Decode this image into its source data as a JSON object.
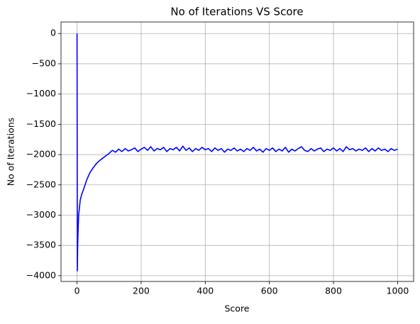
{
  "chart_data": {
    "type": "line",
    "title": "No of Iterations VS Score",
    "x_label": "Score",
    "y_label": "No of Iterations",
    "color": "#0000ff",
    "grid": true,
    "xlim": [
      -50,
      1050
    ],
    "xticks": [
      0,
      200,
      400,
      600,
      800,
      1000
    ],
    "ylim": [
      -4095,
      190
    ],
    "yticks": [
      0,
      {
        "value": -500,
        "label": "−500"
      },
      {
        "value": -1000,
        "label": "−1000"
      },
      {
        "value": -1500,
        "label": "−1500"
      },
      {
        "value": -2000,
        "label": "−2000"
      },
      {
        "value": -2500,
        "label": "−2500"
      },
      {
        "value": -3000,
        "label": "−3000"
      },
      {
        "value": -3500,
        "label": "−3500"
      },
      {
        "value": -4000,
        "label": "−4000"
      }
    ],
    "x": [
      0,
      1,
      2,
      3,
      5,
      7,
      10,
      15,
      20,
      25,
      30,
      40,
      50,
      60,
      70,
      80,
      90,
      100,
      110,
      120,
      130,
      140,
      150,
      160,
      170,
      180,
      190,
      200,
      210,
      220,
      230,
      240,
      250,
      260,
      270,
      280,
      290,
      300,
      310,
      320,
      330,
      340,
      350,
      360,
      370,
      380,
      390,
      400,
      410,
      420,
      430,
      440,
      450,
      460,
      470,
      480,
      490,
      500,
      510,
      520,
      530,
      540,
      550,
      560,
      570,
      580,
      590,
      600,
      610,
      620,
      630,
      640,
      650,
      660,
      670,
      680,
      690,
      700,
      710,
      720,
      730,
      740,
      750,
      760,
      770,
      780,
      790,
      800,
      810,
      820,
      830,
      840,
      850,
      860,
      870,
      880,
      890,
      900,
      910,
      920,
      930,
      940,
      950,
      960,
      970,
      980,
      990,
      1000
    ],
    "values": [
      0,
      -3920,
      -3500,
      -3300,
      -3000,
      -2900,
      -2750,
      -2650,
      -2580,
      -2500,
      -2420,
      -2300,
      -2220,
      -2150,
      -2100,
      -2060,
      -2020,
      -1980,
      -1930,
      -1960,
      -1910,
      -1950,
      -1900,
      -1940,
      -1920,
      -1890,
      -1950,
      -1910,
      -1880,
      -1930,
      -1870,
      -1940,
      -1900,
      -1920,
      -1880,
      -1950,
      -1900,
      -1920,
      -1880,
      -1940,
      -1860,
      -1930,
      -1890,
      -1950,
      -1900,
      -1930,
      -1880,
      -1920,
      -1900,
      -1950,
      -1890,
      -1930,
      -1900,
      -1960,
      -1910,
      -1930,
      -1890,
      -1940,
      -1910,
      -1950,
      -1900,
      -1930,
      -1880,
      -1940,
      -1910,
      -1960,
      -1900,
      -1930,
      -1890,
      -1950,
      -1910,
      -1940,
      -1880,
      -1960,
      -1910,
      -1940,
      -1900,
      -1870,
      -1930,
      -1950,
      -1900,
      -1940,
      -1910,
      -1890,
      -1950,
      -1910,
      -1930,
      -1890,
      -1940,
      -1900,
      -1950,
      -1870,
      -1920,
      -1900,
      -1940,
      -1910,
      -1930,
      -1890,
      -1950,
      -1900,
      -1940,
      -1890,
      -1930,
      -1910,
      -1950,
      -1900,
      -1930,
      -1910
    ]
  }
}
